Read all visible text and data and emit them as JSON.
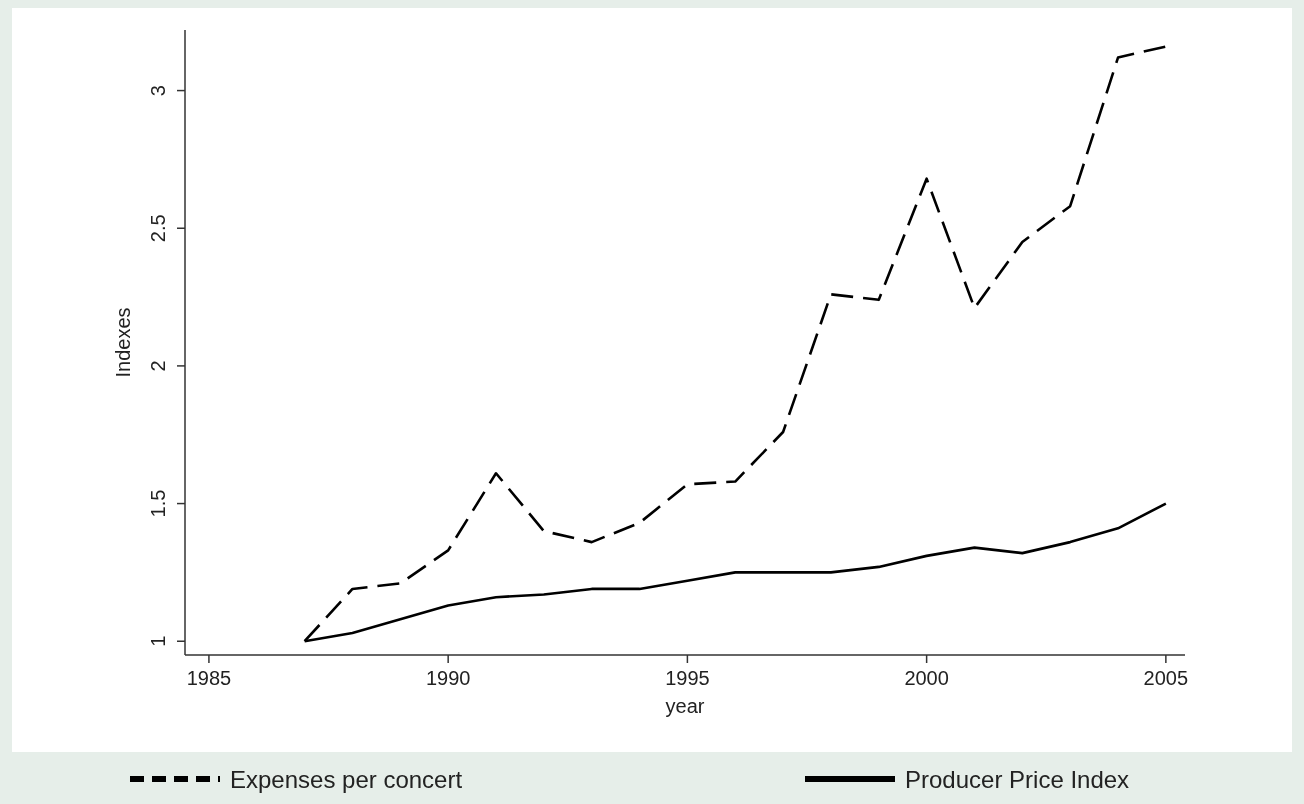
{
  "chart_data": {
    "type": "line",
    "xlabel": "year",
    "ylabel": "Indexes",
    "x": [
      1987,
      1988,
      1989,
      1990,
      1991,
      1992,
      1993,
      1994,
      1995,
      1996,
      1997,
      1998,
      1999,
      2000,
      2001,
      2002,
      2003,
      2004,
      2005
    ],
    "series": [
      {
        "name": "Expenses per concert",
        "color": "#000000",
        "line_style": "dashed",
        "values": [
          1.0,
          1.19,
          1.21,
          1.33,
          1.61,
          1.4,
          1.36,
          1.43,
          1.57,
          1.58,
          1.76,
          2.26,
          2.24,
          2.68,
          2.21,
          2.45,
          2.58,
          3.12,
          3.16
        ]
      },
      {
        "name": "Producer Price Index",
        "color": "#000000",
        "line_style": "solid",
        "values": [
          1.0,
          1.03,
          1.08,
          1.13,
          1.16,
          1.17,
          1.19,
          1.19,
          1.22,
          1.25,
          1.25,
          1.25,
          1.27,
          1.31,
          1.34,
          1.32,
          1.36,
          1.41,
          1.5
        ]
      }
    ],
    "xlim": [
      1984.5,
      2005.4
    ],
    "xticks": [
      1985,
      1990,
      1995,
      2000,
      2005
    ],
    "ylim": [
      0.95,
      3.22
    ],
    "yticks": [
      1,
      1.5,
      2,
      2.5,
      3
    ],
    "grid": false,
    "legend": "bottom",
    "marker": "none"
  }
}
